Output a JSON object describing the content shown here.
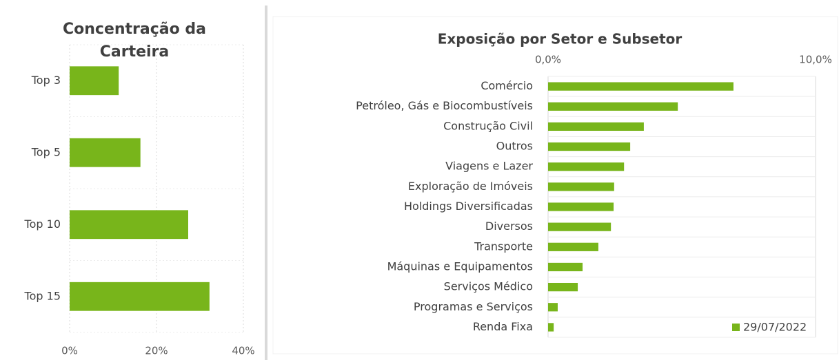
{
  "chart_data": [
    {
      "type": "bar",
      "orientation": "horizontal",
      "title": "Concentração da Carteira",
      "categories": [
        "Top 3",
        "Top 5",
        "Top 10",
        "Top 15"
      ],
      "values": [
        11.3,
        16.3,
        27.3,
        32.2
      ],
      "color": "#78b51b",
      "xlim": [
        0,
        40
      ],
      "xticks": [
        {
          "value": 0,
          "label": "0%"
        },
        {
          "value": 20,
          "label": "20%"
        },
        {
          "value": 40,
          "label": "40%"
        }
      ],
      "grid": true
    },
    {
      "type": "bar",
      "orientation": "horizontal",
      "title": "Exposição por Setor e Subsetor",
      "categories": [
        "Comércio",
        "Petróleo, Gás e Biocombustíveis",
        "Construção Civil",
        "Outros",
        "Viagens e Lazer",
        "Exploração de Imóveis",
        "Holdings Diversificadas",
        "Diversos",
        "Transporte",
        "Máquinas e Equipamentos",
        "Serviços Médico",
        "Programas e Serviços",
        "Renda Fixa"
      ],
      "series": [
        {
          "name": "29/07/2022",
          "color": "#78b51b",
          "values": [
            6.93,
            4.85,
            3.58,
            3.07,
            2.84,
            2.47,
            2.45,
            2.35,
            1.88,
            1.29,
            1.11,
            0.36,
            0.21
          ]
        }
      ],
      "xlim": [
        0,
        10
      ],
      "xticks": [
        {
          "value": 0,
          "label": "0,0%"
        },
        {
          "value": 10,
          "label": "10,0%"
        }
      ],
      "legend": "bottom-right",
      "grid": true
    }
  ]
}
